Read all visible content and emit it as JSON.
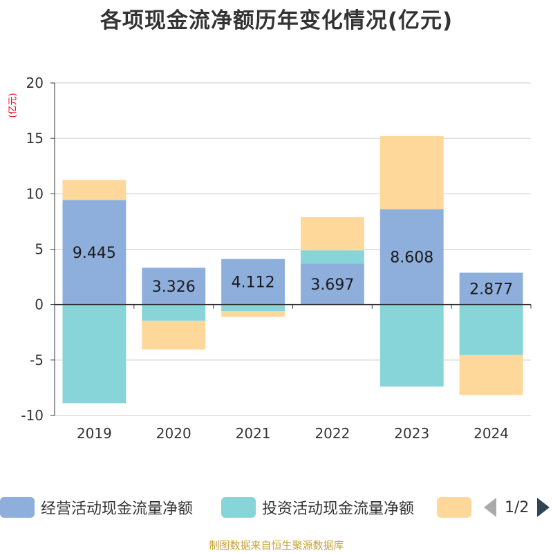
{
  "title": "各项现金流净额历年变化情况(亿元)",
  "unit": "(亿元)",
  "source": "制图数据来自恒生聚源数据库",
  "pager": {
    "text": "1/2"
  },
  "chart_data": {
    "type": "bar",
    "stacked": true,
    "title": "各项现金流净额历年变化情况(亿元)",
    "ylabel": "(亿元)",
    "ylim": [
      -10,
      20
    ],
    "yticks": [
      20,
      15,
      10,
      5,
      0,
      -5,
      -10
    ],
    "grid": true,
    "legend_position": "bottom",
    "categories": [
      "2019",
      "2020",
      "2021",
      "2022",
      "2023",
      "2024"
    ],
    "series": [
      {
        "name": "经营活动现金流量净额",
        "color": "#8eaedb",
        "values": [
          9.445,
          3.326,
          4.112,
          3.697,
          8.608,
          2.877
        ],
        "show_labels": true
      },
      {
        "name": "投资活动现金流量净额",
        "color": "#87d5d9",
        "values": [
          -8.9,
          -1.45,
          -0.6,
          1.2,
          -7.4,
          -4.55
        ],
        "show_labels": false
      },
      {
        "name": "",
        "color": "#fed89a",
        "values": [
          1.8,
          -2.6,
          -0.5,
          3.0,
          6.6,
          -3.6
        ],
        "show_labels": false
      }
    ]
  }
}
